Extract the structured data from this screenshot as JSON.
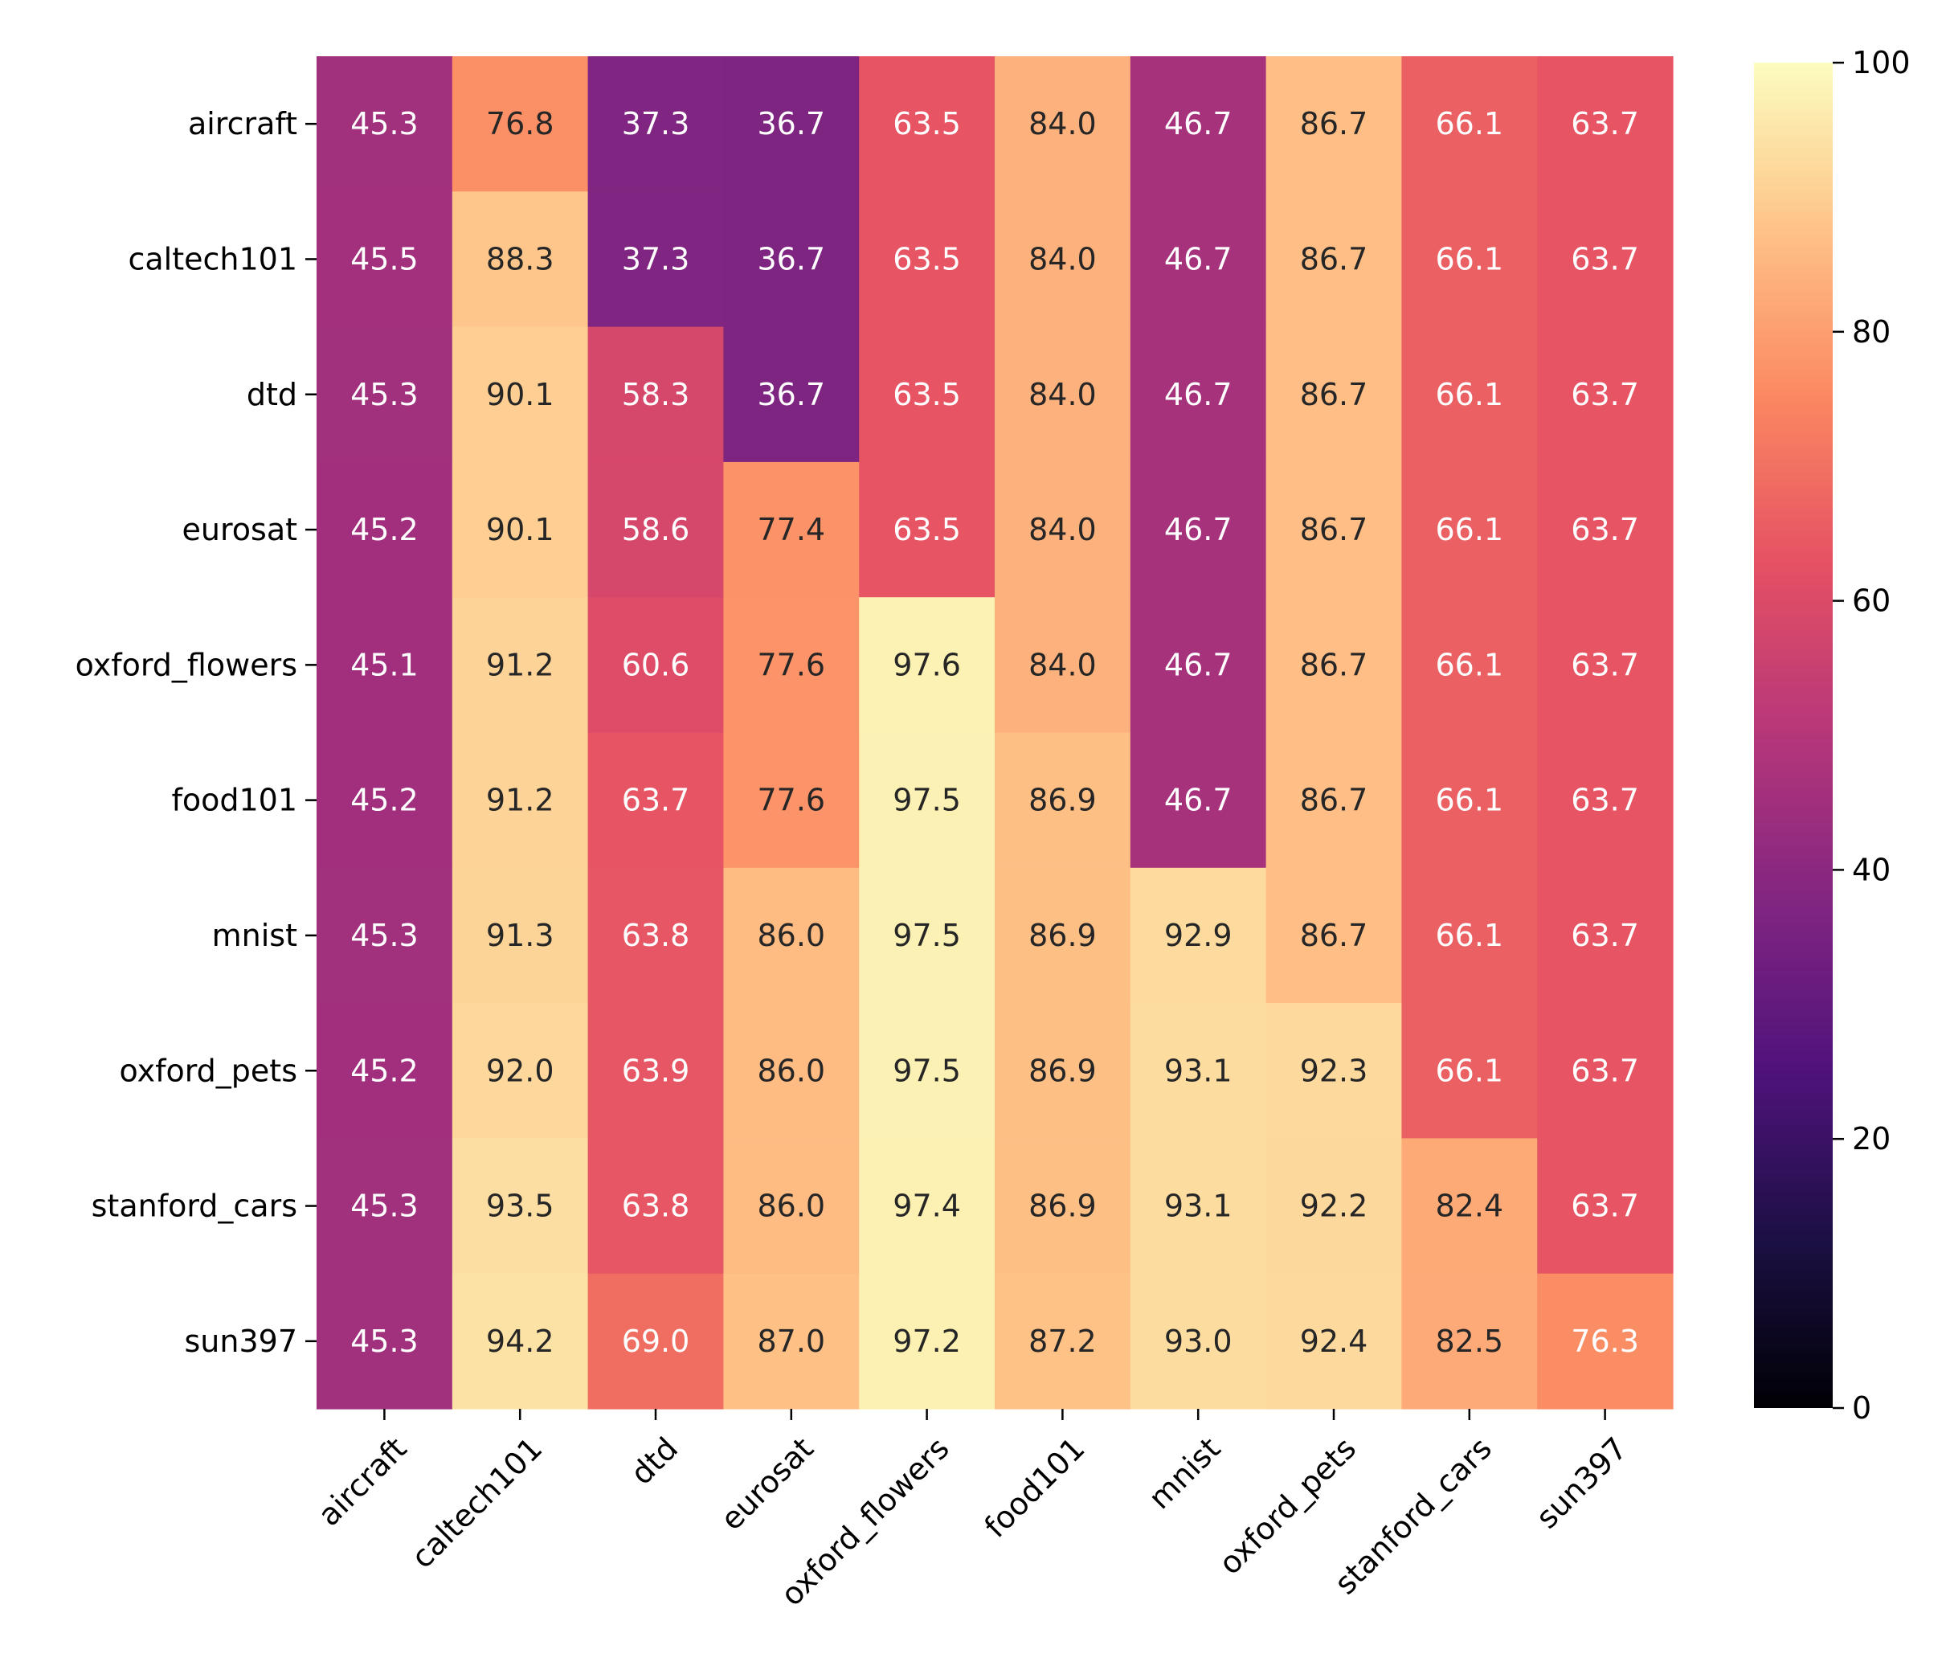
{
  "chart_data": {
    "type": "heatmap",
    "x_labels": [
      "aircraft",
      "caltech101",
      "dtd",
      "eurosat",
      "oxford_flowers",
      "food101",
      "mnist",
      "oxford_pets",
      "stanford_cars",
      "sun397"
    ],
    "y_labels": [
      "aircraft",
      "caltech101",
      "dtd",
      "eurosat",
      "oxford_flowers",
      "food101",
      "mnist",
      "oxford_pets",
      "stanford_cars",
      "sun397"
    ],
    "values": [
      [
        45.3,
        76.8,
        37.3,
        36.7,
        63.5,
        84.0,
        46.7,
        86.7,
        66.1,
        63.7
      ],
      [
        45.5,
        88.3,
        37.3,
        36.7,
        63.5,
        84.0,
        46.7,
        86.7,
        66.1,
        63.7
      ],
      [
        45.3,
        90.1,
        58.3,
        36.7,
        63.5,
        84.0,
        46.7,
        86.7,
        66.1,
        63.7
      ],
      [
        45.2,
        90.1,
        58.6,
        77.4,
        63.5,
        84.0,
        46.7,
        86.7,
        66.1,
        63.7
      ],
      [
        45.1,
        91.2,
        60.6,
        77.6,
        97.6,
        84.0,
        46.7,
        86.7,
        66.1,
        63.7
      ],
      [
        45.2,
        91.2,
        63.7,
        77.6,
        97.5,
        86.9,
        46.7,
        86.7,
        66.1,
        63.7
      ],
      [
        45.3,
        91.3,
        63.8,
        86.0,
        97.5,
        86.9,
        92.9,
        86.7,
        66.1,
        63.7
      ],
      [
        45.2,
        92.0,
        63.9,
        86.0,
        97.5,
        86.9,
        93.1,
        92.3,
        66.1,
        63.7
      ],
      [
        45.3,
        93.5,
        63.8,
        86.0,
        97.4,
        86.9,
        93.1,
        92.2,
        82.4,
        63.7
      ],
      [
        45.3,
        94.2,
        69.0,
        87.0,
        97.2,
        87.2,
        93.0,
        92.4,
        82.5,
        76.3
      ]
    ],
    "value_format": "0.1f",
    "colormap": "magma",
    "vmin": 0,
    "vmax": 100,
    "colorbar_ticks": [
      0,
      20,
      40,
      60,
      80,
      100
    ],
    "annotation_color_dark": "#262626",
    "annotation_color_light": "#ffffff",
    "label_color": "#000000"
  }
}
